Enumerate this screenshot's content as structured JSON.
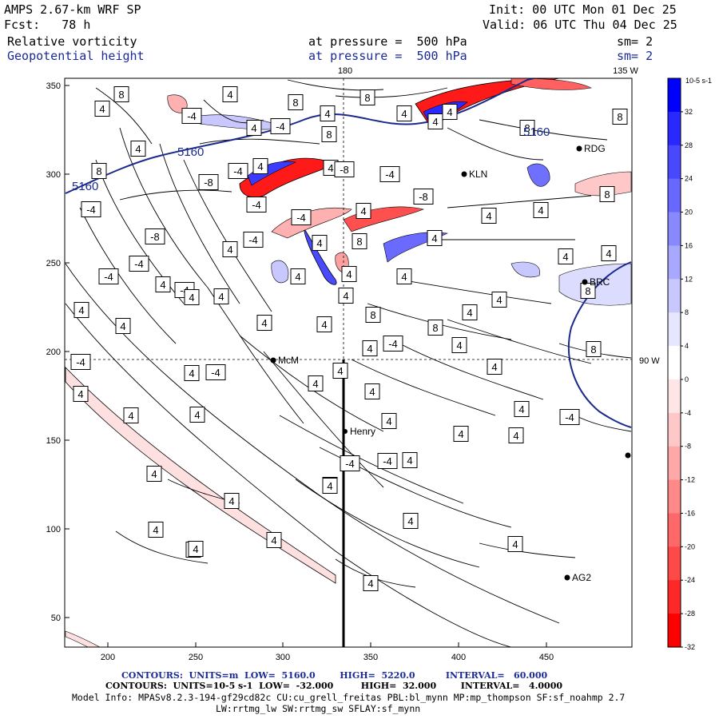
{
  "header": {
    "model": "AMPS 2.67-km WRF SP",
    "init": "Init: 00 UTC Mon 01 Dec 25",
    "fcst": "Fcst:   78 h",
    "valid": "Valid: 06 UTC Thu 04 Dec 25",
    "field1": "Relative vorticity",
    "field1_level": "at pressure =  500 hPa",
    "field1_sm": "sm= 2",
    "field2": "Geopotential height",
    "field2_level": "at pressure =  500 hPa",
    "field2_sm": "sm= 2"
  },
  "plot": {
    "x_ticks": [
      "200",
      "250",
      "300",
      "350",
      "400",
      "450"
    ],
    "y_ticks": [
      "350",
      "300",
      "250",
      "200",
      "150",
      "100",
      "50"
    ],
    "lon_label_180": "180",
    "lon_label_135w": "135 W",
    "lon_label_90w": "90 W",
    "height_contour_labels": [
      "5160",
      "5160",
      "5160"
    ],
    "stations": [
      "McM",
      "Henry",
      "KLN",
      "RDG",
      "BRC",
      "AG2"
    ],
    "vorticity_labels": [
      "4",
      "8",
      "-4",
      "8",
      "4",
      "8",
      "4",
      "4",
      "-4",
      "8",
      "4",
      "4",
      "4",
      "8",
      "8",
      "4",
      "8",
      "-4",
      "4",
      "4",
      "-8",
      "-4",
      "-8",
      "-4",
      "-8",
      "-4",
      "-8",
      "-4",
      "4",
      "4",
      "4",
      "8",
      "4",
      "4",
      "4",
      "8",
      "-4",
      "-4",
      "4",
      "4",
      "4",
      "4",
      "4",
      "8",
      "4",
      "-4",
      "4",
      "4",
      "4",
      "4",
      "4",
      "8",
      "4",
      "4",
      "4",
      "8",
      "4",
      "-4",
      "4",
      "8",
      "-4",
      "4",
      "-4",
      "4",
      "4",
      "4",
      "4",
      "4",
      "4",
      "4",
      "4",
      "4",
      "4",
      "-4",
      "4",
      "4",
      "4",
      "4",
      "4",
      "4",
      "-4",
      "4",
      "4",
      "4",
      "-4",
      "4",
      "4",
      "4",
      "4",
      "-4",
      "4",
      "4"
    ]
  },
  "colorbar": {
    "units": "10-5 s-1",
    "labels": [
      "32",
      "28",
      "24",
      "20",
      "16",
      "12",
      "8",
      "4",
      "0",
      "-4",
      "-8",
      "-12",
      "-16",
      "-20",
      "-24",
      "-28",
      "-32"
    ],
    "colors": [
      "#0000ff",
      "#2828ff",
      "#4848ff",
      "#6868ff",
      "#8888ff",
      "#a8a8ff",
      "#c8c8ff",
      "#e6e6ff",
      "#ffffff",
      "#ffe6e6",
      "#ffc8c8",
      "#ffa8a8",
      "#ff8888",
      "#ff6868",
      "#ff4848",
      "#ff2828",
      "#ff0000"
    ]
  },
  "footer": {
    "line1": "CONTOURS:  UNITS=m  LOW=  5160.0        HIGH=  5220.0          INTERVAL=   60.000",
    "line2": "CONTOURS:  UNITS=10-5 s-1  LOW=  -32.000         HIGH=  32.000        INTERVAL=   4.0000",
    "line3": "Model Info: MPASv8.2.3-194-gf29cd82c CU:cu_grell_freitas PBL:bl_mynn MP:mp_thompson SF:sf_noahmp 2.7",
    "line4": "LW:rrtmg_lw SW:rrtmg_sw SFLAY:sf_mynn"
  }
}
